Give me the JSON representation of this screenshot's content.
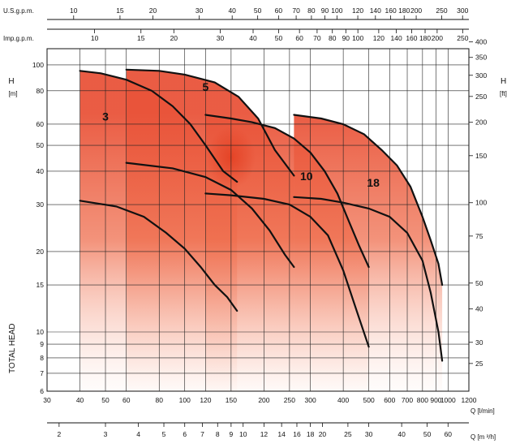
{
  "chart_data": {
    "type": "line",
    "title": "",
    "axes": {
      "x_main": {
        "label": "Q [l/min]",
        "scale": "log",
        "range": [
          30,
          1200
        ],
        "ticks": [
          "30",
          "40",
          "50",
          "60",
          "80",
          "100",
          "120",
          "150",
          "200",
          "250",
          "300",
          "400",
          "500",
          "600",
          "700",
          "800",
          "900",
          "1000",
          "1200"
        ]
      },
      "x_bottom": {
        "label": "Q [m ³/h]",
        "ticks": [
          "2",
          "3",
          "4",
          "5",
          "6",
          "7",
          "8",
          "9",
          "10",
          "12",
          "14",
          "16",
          "18",
          "20",
          "25",
          "30",
          "40",
          "50",
          "60"
        ]
      },
      "x_top_us": {
        "label": "U.S.g.p.m.",
        "ticks": [
          "10",
          "15",
          "20",
          "30",
          "40",
          "50",
          "60",
          "70",
          "80",
          "90",
          "100",
          "120",
          "140",
          "160",
          "180",
          "200",
          "250",
          "300"
        ]
      },
      "x_top_imp": {
        "label": "Imp.g.p.m.",
        "ticks": [
          "10",
          "15",
          "20",
          "30",
          "40",
          "50",
          "60",
          "70",
          "80",
          "90",
          "100",
          "120",
          "140",
          "160",
          "180",
          "200",
          "250"
        ]
      },
      "y_left": {
        "label_unit": "H [m]",
        "side_label": "TOTAL HEAD",
        "scale": "log",
        "range": [
          6,
          115
        ],
        "ticks": [
          "6",
          "7",
          "8",
          "9",
          "10",
          "15",
          "20",
          "30",
          "40",
          "50",
          "60",
          "80",
          "100"
        ]
      },
      "y_right": {
        "label_unit": "H [ft]",
        "ticks": [
          "25",
          "30",
          "40",
          "50",
          "75",
          "100",
          "150",
          "200",
          "250",
          "300",
          "350",
          "400"
        ]
      }
    },
    "grid": true,
    "legend": "none",
    "series": [
      {
        "name": "3",
        "max_curve": {
          "x": [
            40,
            48,
            60,
            75,
            90,
            105,
            120,
            140,
            158
          ],
          "y": [
            95,
            93,
            88,
            80,
            70,
            60,
            50,
            40,
            36.5
          ]
        },
        "min_curve": {
          "x": [
            40,
            55,
            70,
            85,
            100,
            115,
            130,
            145,
            158
          ],
          "y": [
            31,
            29.5,
            27,
            23.5,
            20.5,
            17.5,
            15,
            13.5,
            12
          ]
        }
      },
      {
        "name": "5",
        "max_curve": {
          "x": [
            60,
            80,
            100,
            130,
            160,
            190,
            220,
            260
          ],
          "y": [
            96,
            95,
            92,
            86,
            76,
            63,
            48,
            38.5
          ]
        },
        "min_curve": {
          "x": [
            60,
            90,
            120,
            150,
            180,
            210,
            240,
            260
          ],
          "y": [
            43,
            41,
            38,
            34,
            29,
            24,
            19.5,
            17.5
          ]
        }
      },
      {
        "name": "10",
        "max_curve": {
          "x": [
            120,
            150,
            180,
            220,
            260,
            300,
            340,
            380,
            420,
            460,
            500
          ],
          "y": [
            65,
            63,
            61,
            58,
            53,
            47,
            40,
            33,
            26,
            21,
            17.5
          ]
        },
        "min_curve": {
          "x": [
            120,
            150,
            200,
            250,
            300,
            350,
            400,
            450,
            500
          ],
          "y": [
            33,
            32.5,
            31.5,
            30,
            27,
            23,
            17,
            12,
            8.8
          ]
        }
      },
      {
        "name": "18",
        "max_curve": {
          "x": [
            260,
            330,
            400,
            480,
            560,
            640,
            720,
            800,
            860,
            920,
            950
          ],
          "y": [
            65,
            63,
            60,
            55,
            48,
            42,
            35,
            27,
            22,
            18,
            15
          ]
        },
        "min_curve": {
          "x": [
            260,
            330,
            400,
            500,
            600,
            700,
            800,
            860,
            920,
            950
          ],
          "y": [
            32,
            31.5,
            30.5,
            29,
            27,
            23.5,
            18.5,
            14,
            10,
            7.8
          ]
        }
      }
    ],
    "model_labels": [
      "3",
      "5",
      "10",
      "18"
    ],
    "colors": {
      "fill": "#e9543a",
      "curve": "#111111",
      "grid": "#222222",
      "axis": "#111111"
    }
  }
}
